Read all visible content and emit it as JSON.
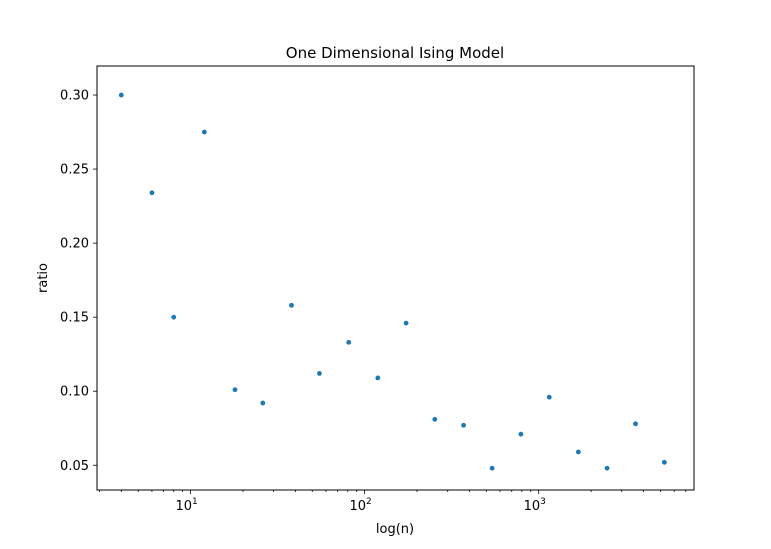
{
  "chart_data": {
    "type": "scatter",
    "title": "One Dimensional Ising Model",
    "xlabel": "log(n)",
    "ylabel": "ratio",
    "xscale": "log",
    "xlim": [
      2.9,
      7800
    ],
    "ylim": [
      0.0333,
      0.3196
    ],
    "grid": false,
    "legend": "none",
    "marker_color": "#1f77b4",
    "x_ticks": [
      {
        "value": 10,
        "base": "10",
        "exp": "1"
      },
      {
        "value": 100,
        "base": "10",
        "exp": "2"
      },
      {
        "value": 1000,
        "base": "10",
        "exp": "3"
      }
    ],
    "y_ticks": [
      {
        "value": 0.05,
        "label": "0.05"
      },
      {
        "value": 0.1,
        "label": "0.10"
      },
      {
        "value": 0.15,
        "label": "0.15"
      },
      {
        "value": 0.2,
        "label": "0.20"
      },
      {
        "value": 0.25,
        "label": "0.25"
      },
      {
        "value": 0.3,
        "label": "0.30"
      }
    ],
    "series": [
      {
        "x": [
          4,
          6,
          8,
          12,
          18,
          26,
          38,
          55,
          81,
          119,
          173,
          253,
          370,
          540,
          790,
          1150,
          1690,
          2470,
          3600,
          5270
        ],
        "y": [
          0.3,
          0.234,
          0.15,
          0.275,
          0.101,
          0.092,
          0.158,
          0.112,
          0.133,
          0.109,
          0.146,
          0.081,
          0.077,
          0.048,
          0.071,
          0.096,
          0.059,
          0.048,
          0.078,
          0.052
        ]
      }
    ]
  }
}
